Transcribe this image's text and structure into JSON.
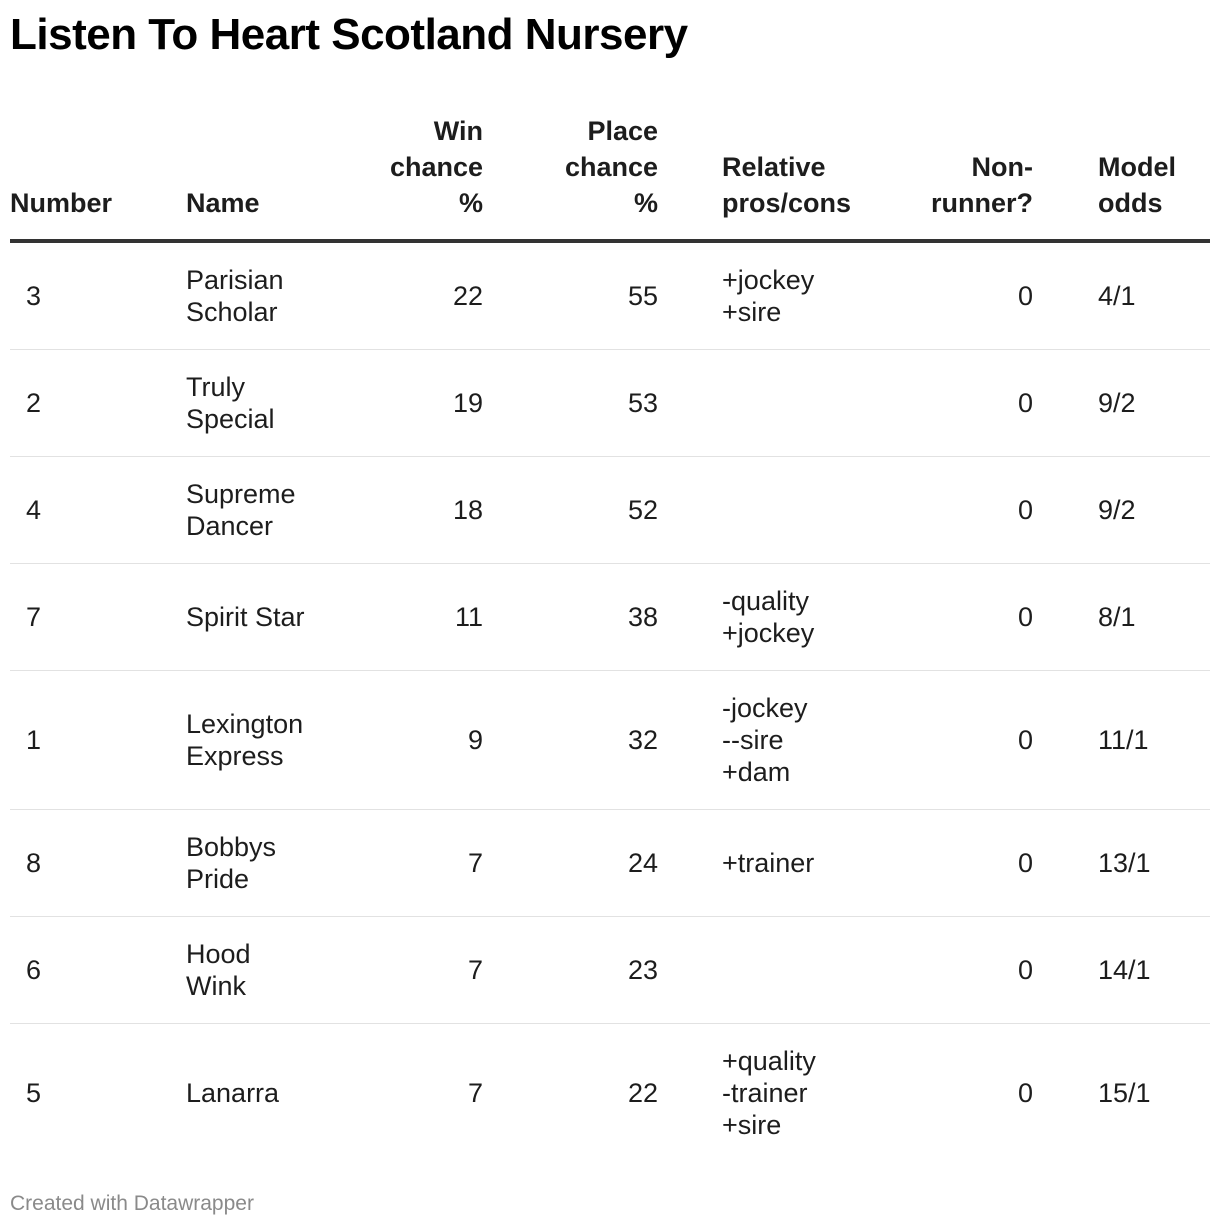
{
  "title": "Listen To Heart Scotland Nursery",
  "footer": "Created with Datawrapper",
  "chart_data": {
    "type": "table",
    "columns": [
      {
        "key": "number",
        "label": "Number"
      },
      {
        "key": "name",
        "label": "Name"
      },
      {
        "key": "win",
        "label": "Win chance %"
      },
      {
        "key": "place",
        "label": "Place chance %"
      },
      {
        "key": "pros",
        "label": "Relative pros/cons"
      },
      {
        "key": "nonrunner",
        "label": "Non-runner?"
      },
      {
        "key": "odds",
        "label": "Model odds"
      }
    ],
    "header_lines": [
      [
        "Number"
      ],
      [
        "Name"
      ],
      [
        "Win",
        "chance",
        "%"
      ],
      [
        "Place",
        "chance",
        "%"
      ],
      [
        "Relative",
        "pros/cons"
      ],
      [
        "Non-",
        "runner?"
      ],
      [
        "Model",
        "odds"
      ]
    ],
    "rows": [
      {
        "number": "3",
        "name": [
          "Parisian",
          "Scholar"
        ],
        "win": "22",
        "place": "55",
        "pros": [
          "+jockey",
          "+sire"
        ],
        "nonrunner": "0",
        "odds": "4/1"
      },
      {
        "number": "2",
        "name": [
          "Truly",
          "Special"
        ],
        "win": "19",
        "place": "53",
        "pros": [],
        "nonrunner": "0",
        "odds": "9/2"
      },
      {
        "number": "4",
        "name": [
          "Supreme",
          "Dancer"
        ],
        "win": "18",
        "place": "52",
        "pros": [],
        "nonrunner": "0",
        "odds": "9/2"
      },
      {
        "number": "7",
        "name": [
          "Spirit Star"
        ],
        "win": "11",
        "place": "38",
        "pros": [
          "-quality",
          "+jockey"
        ],
        "nonrunner": "0",
        "odds": "8/1"
      },
      {
        "number": "1",
        "name": [
          "Lexington",
          "Express"
        ],
        "win": "9",
        "place": "32",
        "pros": [
          "-jockey",
          "--sire",
          "+dam"
        ],
        "nonrunner": "0",
        "odds": "11/1"
      },
      {
        "number": "8",
        "name": [
          "Bobbys",
          "Pride"
        ],
        "win": "7",
        "place": "24",
        "pros": [
          "+trainer"
        ],
        "nonrunner": "0",
        "odds": "13/1"
      },
      {
        "number": "6",
        "name": [
          "Hood",
          "Wink"
        ],
        "win": "7",
        "place": "23",
        "pros": [],
        "nonrunner": "0",
        "odds": "14/1"
      },
      {
        "number": "5",
        "name": [
          "Lanarra"
        ],
        "win": "7",
        "place": "22",
        "pros": [
          "+quality",
          "-trainer",
          "+sire"
        ],
        "nonrunner": "0",
        "odds": "15/1"
      }
    ]
  }
}
